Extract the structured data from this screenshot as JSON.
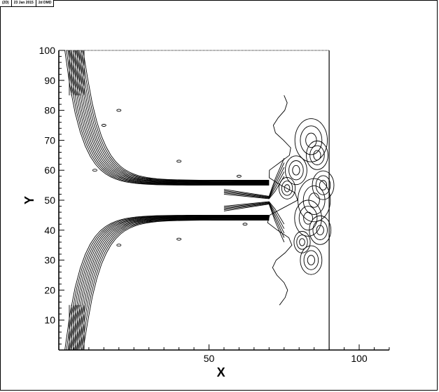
{
  "header": {
    "tag": "(2D)",
    "date": "23 Jan 2015",
    "title": "2d DMD"
  },
  "chart_data": {
    "type": "contour",
    "xlabel": "X",
    "ylabel": "Y",
    "xlim": [
      0,
      110
    ],
    "ylim": [
      0,
      100
    ],
    "x_ticks": [
      50,
      100
    ],
    "y_ticks": [
      10,
      20,
      30,
      40,
      50,
      60,
      70,
      80,
      90,
      100
    ],
    "grid": false,
    "legend": "none",
    "domain_x_max": 90,
    "colors": {
      "line": "#000000",
      "background": "#ffffff"
    }
  }
}
